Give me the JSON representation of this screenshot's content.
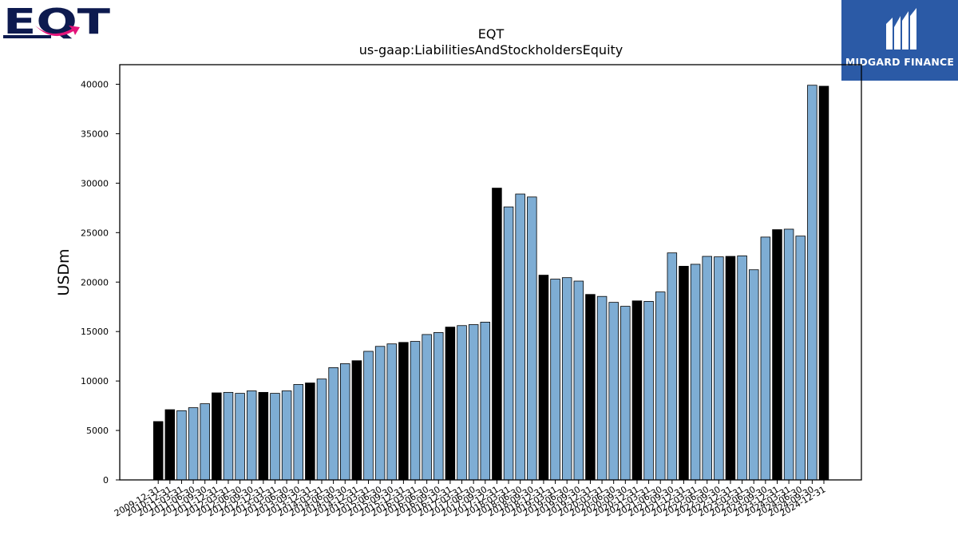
{
  "logos": {
    "left_text": "EQT",
    "right_text": "MIDGARD FINANCE"
  },
  "colors": {
    "primary_bar": "#000000",
    "secondary_bar": "#7eadd4",
    "bar_edge": "#000000",
    "logo_left_navy": "#0d1a4f",
    "logo_left_pink": "#e3147a",
    "logo_right_bg": "#2b5aa6"
  },
  "chart_data": {
    "type": "bar",
    "title": "EQT",
    "subtitle": "us-gaap:LiabilitiesAndStockholdersEquity",
    "ylabel": "USDm",
    "xlabel": "",
    "ylim": [
      0,
      42000
    ],
    "yticks": [
      0,
      5000,
      10000,
      15000,
      20000,
      25000,
      30000,
      35000,
      40000
    ],
    "grid": false,
    "legend": "none",
    "categories": [
      "2009-12-31",
      "2010-12-31",
      "2011-03-31",
      "2011-06-30",
      "2011-09-30",
      "2011-12-31",
      "2012-03-31",
      "2012-06-30",
      "2012-09-30",
      "2012-12-31",
      "2013-03-31",
      "2013-06-30",
      "2013-09-30",
      "2013-12-31",
      "2014-03-31",
      "2014-06-30",
      "2014-09-30",
      "2014-12-31",
      "2015-03-31",
      "2015-06-30",
      "2015-09-30",
      "2015-12-31",
      "2016-03-31",
      "2016-06-30",
      "2016-09-30",
      "2016-12-31",
      "2017-03-31",
      "2017-06-30",
      "2017-09-30",
      "2017-12-31",
      "2018-03-31",
      "2018-06-30",
      "2018-09-30",
      "2018-12-31",
      "2019-03-31",
      "2019-06-30",
      "2019-09-30",
      "2019-12-31",
      "2020-03-31",
      "2020-06-30",
      "2020-09-30",
      "2020-12-31",
      "2021-03-31",
      "2021-06-30",
      "2021-09-30",
      "2021-12-31",
      "2022-03-31",
      "2022-06-30",
      "2022-09-30",
      "2022-12-31",
      "2023-03-31",
      "2023-06-30",
      "2023-09-30",
      "2023-12-31",
      "2024-03-31",
      "2024-06-30",
      "2024-09-30",
      "2024-12-31"
    ],
    "values": [
      5900,
      7100,
      7000,
      7300,
      7700,
      8800,
      8850,
      8750,
      9000,
      8850,
      8750,
      9000,
      9650,
      9800,
      10200,
      11350,
      11750,
      12050,
      13000,
      13500,
      13750,
      13900,
      14000,
      14700,
      14900,
      15450,
      15600,
      15700,
      15950,
      29500,
      27600,
      28900,
      28600,
      20700,
      20300,
      20450,
      20100,
      18750,
      18550,
      17950,
      17550,
      18100,
      18050,
      19000,
      22950,
      21600,
      21800,
      22600,
      22550,
      22600,
      22650,
      21250,
      24550,
      25300,
      25350,
      24650,
      39900,
      39800
    ],
    "fiscal_year_end": [
      true,
      true,
      false,
      false,
      false,
      true,
      false,
      false,
      false,
      true,
      false,
      false,
      false,
      true,
      false,
      false,
      false,
      true,
      false,
      false,
      false,
      true,
      false,
      false,
      false,
      true,
      false,
      false,
      false,
      true,
      false,
      false,
      false,
      true,
      false,
      false,
      false,
      true,
      false,
      false,
      false,
      true,
      false,
      false,
      false,
      true,
      false,
      false,
      false,
      true,
      false,
      false,
      false,
      true,
      false,
      false,
      false,
      true
    ]
  }
}
